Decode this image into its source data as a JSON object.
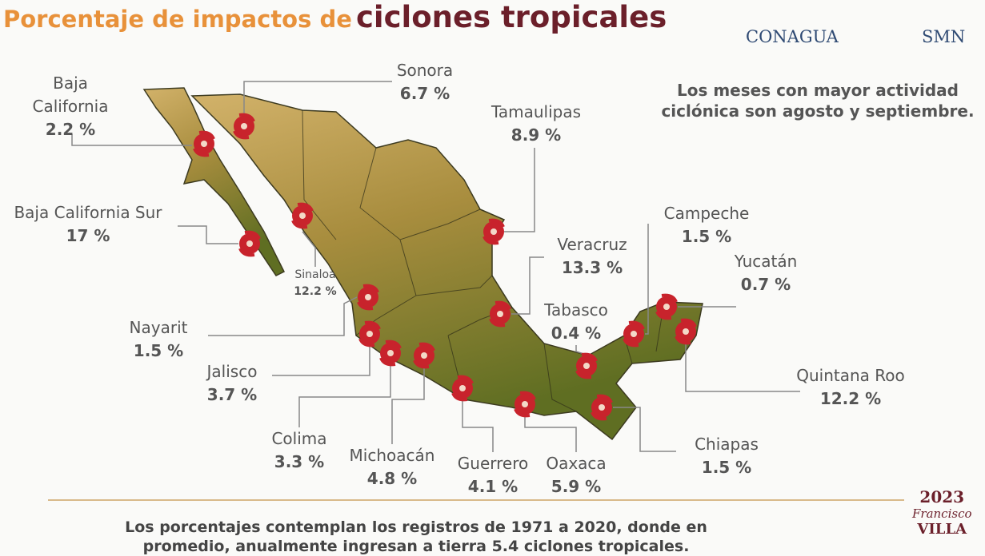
{
  "header": {
    "title_lead": "Porcentaje de impactos de",
    "title_main": "ciclones tropicales",
    "logos": [
      "CONAGUA",
      "SMN"
    ]
  },
  "note": "Los meses con mayor actividad ciclónica son agosto y septiembre.",
  "states": [
    {
      "name": "Baja California",
      "value": "2.2 %"
    },
    {
      "name": "Sonora",
      "value": "6.7 %"
    },
    {
      "name": "Tamaulipas",
      "value": "8.9 %"
    },
    {
      "name": "Baja California Sur",
      "value": "17 %"
    },
    {
      "name": "Sinaloa",
      "value": "12.2 %"
    },
    {
      "name": "Nayarit",
      "value": "1.5 %"
    },
    {
      "name": "Jalisco",
      "value": "3.7 %"
    },
    {
      "name": "Colima",
      "value": "3.3 %"
    },
    {
      "name": "Michoacán",
      "value": "4.8 %"
    },
    {
      "name": "Guerrero",
      "value": "4.1 %"
    },
    {
      "name": "Oaxaca",
      "value": "5.9 %"
    },
    {
      "name": "Chiapas",
      "value": "1.5 %"
    },
    {
      "name": "Veracruz",
      "value": "13.3 %"
    },
    {
      "name": "Tabasco",
      "value": "0.4 %"
    },
    {
      "name": "Campeche",
      "value": "1.5 %"
    },
    {
      "name": "Yucatán",
      "value": "0.7 %"
    },
    {
      "name": "Quintana Roo",
      "value": "12.2 %"
    }
  ],
  "footer": "Los porcentajes contemplan los registros de 1971 a 2020, donde en promedio, anualmente ingresan a tierra 5.4 ciclones tropicales.",
  "badge": {
    "year": "2023",
    "name": "Francisco",
    "surname": "VILLA"
  }
}
